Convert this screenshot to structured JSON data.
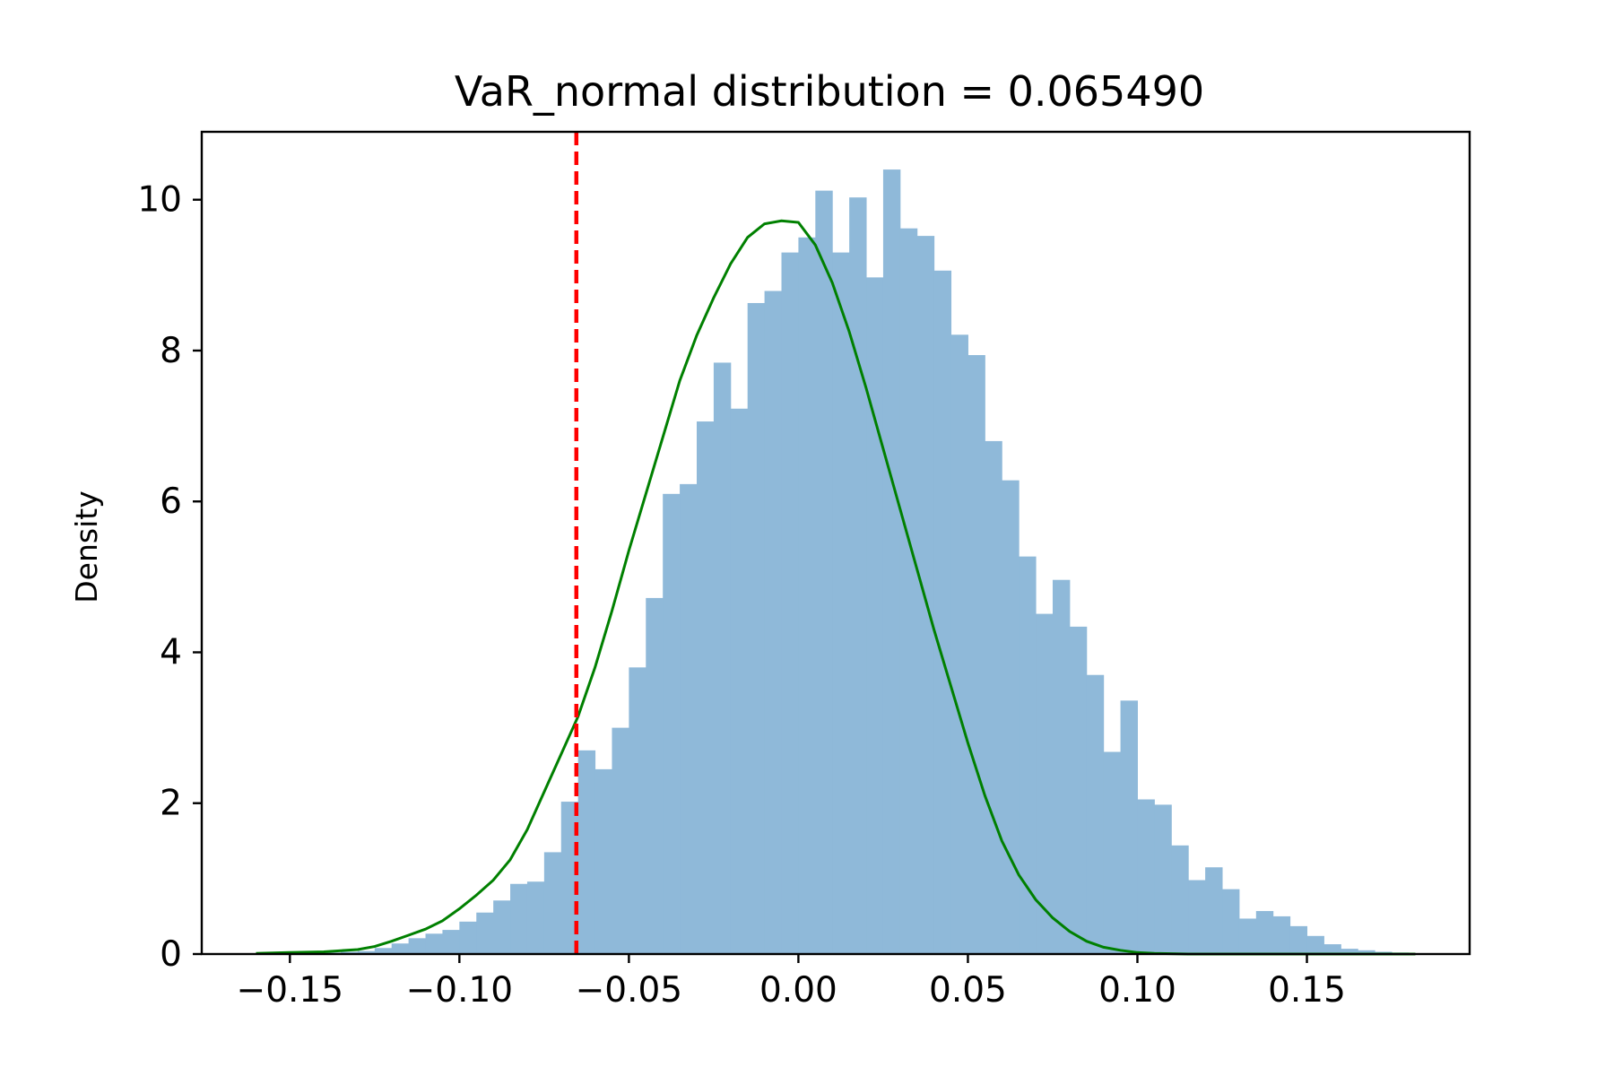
{
  "chart_data": {
    "type": "bar",
    "title": "VaR_normal distribution = 0.065490",
    "xlabel": "",
    "ylabel": "Density",
    "xlim": [
      -0.176,
      0.198
    ],
    "ylim": [
      0,
      10.9
    ],
    "x_ticks": [
      -0.15,
      -0.1,
      -0.05,
      0.0,
      0.05,
      0.1,
      0.15
    ],
    "x_tick_labels": [
      "−0.15",
      "−0.10",
      "−0.05",
      "0.00",
      "0.05",
      "0.10",
      "0.15"
    ],
    "y_ticks": [
      0,
      2,
      4,
      6,
      8,
      10
    ],
    "y_tick_labels": [
      "0",
      "2",
      "4",
      "6",
      "8",
      "10"
    ],
    "grid": false,
    "series": [
      {
        "name": "histogram",
        "kind": "hist",
        "color": "#8fb9d9",
        "bins": [
          [
            -0.16,
            0.02
          ],
          [
            -0.155,
            0.0
          ],
          [
            -0.15,
            0.01
          ],
          [
            -0.145,
            0.0
          ],
          [
            -0.14,
            0.02
          ],
          [
            -0.135,
            0.03
          ],
          [
            -0.13,
            0.04
          ],
          [
            -0.125,
            0.08
          ],
          [
            -0.12,
            0.14
          ],
          [
            -0.115,
            0.21
          ],
          [
            -0.11,
            0.27
          ],
          [
            -0.105,
            0.32
          ],
          [
            -0.1,
            0.43
          ],
          [
            -0.095,
            0.55
          ],
          [
            -0.09,
            0.71
          ],
          [
            -0.085,
            0.93
          ],
          [
            -0.08,
            0.96
          ],
          [
            -0.075,
            1.35
          ],
          [
            -0.07,
            2.02
          ],
          [
            -0.065,
            2.7
          ],
          [
            -0.06,
            2.45
          ],
          [
            -0.055,
            3.0
          ],
          [
            -0.05,
            3.8
          ],
          [
            -0.045,
            4.72
          ],
          [
            -0.04,
            6.1
          ],
          [
            -0.035,
            6.23
          ],
          [
            -0.03,
            7.06
          ],
          [
            -0.025,
            7.84
          ],
          [
            -0.02,
            7.23
          ],
          [
            -0.015,
            8.63
          ],
          [
            -0.01,
            8.79
          ],
          [
            -0.005,
            9.3
          ],
          [
            0.0,
            9.5
          ],
          [
            0.005,
            10.12
          ],
          [
            0.01,
            9.3
          ],
          [
            0.015,
            10.03
          ],
          [
            0.02,
            8.97
          ],
          [
            0.025,
            10.4
          ],
          [
            0.03,
            9.62
          ],
          [
            0.035,
            9.52
          ],
          [
            0.04,
            9.06
          ],
          [
            0.045,
            8.21
          ],
          [
            0.05,
            7.94
          ],
          [
            0.055,
            6.8
          ],
          [
            0.06,
            6.28
          ],
          [
            0.065,
            5.27
          ],
          [
            0.07,
            4.51
          ],
          [
            0.075,
            4.96
          ],
          [
            0.08,
            4.34
          ],
          [
            0.085,
            3.7
          ],
          [
            0.09,
            2.68
          ],
          [
            0.095,
            3.36
          ],
          [
            0.1,
            2.05
          ],
          [
            0.105,
            1.98
          ],
          [
            0.11,
            1.44
          ],
          [
            0.115,
            0.98
          ],
          [
            0.12,
            1.15
          ],
          [
            0.125,
            0.86
          ],
          [
            0.13,
            0.47
          ],
          [
            0.135,
            0.57
          ],
          [
            0.14,
            0.5
          ],
          [
            0.145,
            0.37
          ],
          [
            0.15,
            0.24
          ],
          [
            0.155,
            0.13
          ],
          [
            0.16,
            0.07
          ],
          [
            0.165,
            0.05
          ],
          [
            0.17,
            0.03
          ],
          [
            0.175,
            0.02
          ]
        ],
        "bin_width": 0.005
      },
      {
        "name": "kde",
        "kind": "line",
        "color": "#008000",
        "x": [
          -0.16,
          -0.15,
          -0.14,
          -0.13,
          -0.125,
          -0.12,
          -0.115,
          -0.11,
          -0.105,
          -0.1,
          -0.095,
          -0.09,
          -0.085,
          -0.08,
          -0.075,
          -0.07,
          -0.065,
          -0.06,
          -0.055,
          -0.05,
          -0.045,
          -0.04,
          -0.035,
          -0.03,
          -0.025,
          -0.02,
          -0.015,
          -0.01,
          -0.005,
          0.0,
          0.005,
          0.01,
          0.015,
          0.02,
          0.025,
          0.03,
          0.035,
          0.04,
          0.045,
          0.05,
          0.055,
          0.06,
          0.065,
          0.07,
          0.075,
          0.08,
          0.085,
          0.09,
          0.095,
          0.1,
          0.105,
          0.11,
          0.115,
          0.12,
          0.13,
          0.14,
          0.15,
          0.16,
          0.17,
          0.182
        ],
        "values": [
          0.01,
          0.02,
          0.03,
          0.06,
          0.1,
          0.17,
          0.25,
          0.33,
          0.44,
          0.6,
          0.78,
          0.98,
          1.25,
          1.65,
          2.15,
          2.65,
          3.15,
          3.8,
          4.55,
          5.35,
          6.1,
          6.85,
          7.6,
          8.2,
          8.7,
          9.15,
          9.5,
          9.68,
          9.72,
          9.7,
          9.4,
          8.9,
          8.25,
          7.5,
          6.7,
          5.9,
          5.1,
          4.3,
          3.55,
          2.8,
          2.1,
          1.5,
          1.05,
          0.72,
          0.48,
          0.3,
          0.17,
          0.09,
          0.05,
          0.02,
          0.01,
          0.005,
          0.0,
          0.0,
          0.0,
          0.0,
          0.0,
          0.0,
          0.0,
          0.0
        ]
      },
      {
        "name": "VaR line",
        "kind": "vline",
        "color": "#ff0000",
        "x": -0.0655,
        "style": "dashed"
      }
    ]
  }
}
